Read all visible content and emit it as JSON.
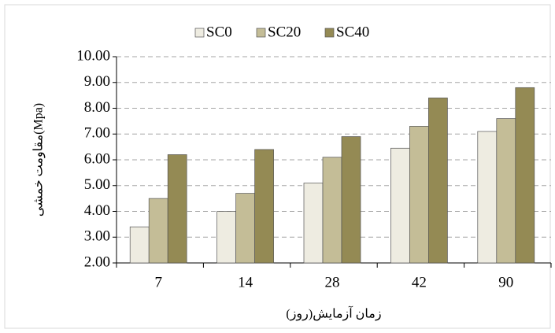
{
  "chart_data": {
    "type": "bar",
    "y_label": "مقاومت خمشی(Mpa)",
    "x_label": "زمان آزمایش(روز)",
    "categories": [
      "7",
      "14",
      "28",
      "42",
      "90"
    ],
    "series": [
      {
        "name": "SC0",
        "color": "#eeece1",
        "values": [
          3.4,
          4.0,
          5.1,
          6.45,
          7.1
        ]
      },
      {
        "name": "SC20",
        "color": "#c4bd97",
        "values": [
          4.5,
          4.7,
          6.1,
          7.3,
          7.6
        ]
      },
      {
        "name": "SC40",
        "color": "#948a54",
        "values": [
          6.2,
          6.4,
          6.9,
          8.4,
          8.8
        ]
      }
    ],
    "ylim": [
      2,
      10
    ],
    "yticks": [
      {
        "value": 2,
        "label": "2.00"
      },
      {
        "value": 3,
        "label": "3.00"
      },
      {
        "value": 4,
        "label": "4.00"
      },
      {
        "value": 5,
        "label": "5.00"
      },
      {
        "value": 6,
        "label": "6.00"
      },
      {
        "value": 7,
        "label": "7.00"
      },
      {
        "value": 8,
        "label": "8.00"
      },
      {
        "value": 9,
        "label": "9.00"
      },
      {
        "value": 10,
        "label": "10.00"
      }
    ],
    "grid": true
  }
}
